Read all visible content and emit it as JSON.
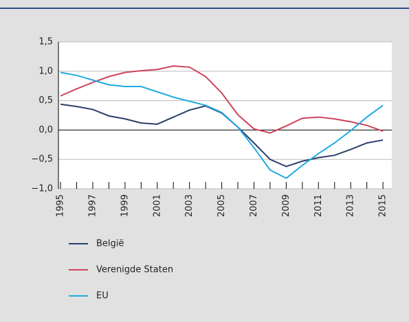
{
  "chart_data": {
    "type": "line",
    "x": [
      1995,
      1996,
      1997,
      1998,
      1999,
      2000,
      2001,
      2002,
      2003,
      2004,
      2005,
      2006,
      2007,
      2008,
      2009,
      2010,
      2011,
      2012,
      2013,
      2014,
      2015
    ],
    "series": [
      {
        "name": "België",
        "color": "#2b3f6b",
        "values": [
          0.44,
          0.4,
          0.35,
          0.24,
          0.19,
          0.12,
          0.1,
          0.22,
          0.34,
          0.41,
          0.29,
          0.05,
          -0.22,
          -0.5,
          -0.62,
          -0.53,
          -0.47,
          -0.43,
          -0.33,
          -0.22,
          -0.17
        ]
      },
      {
        "name": "Verenigde Staten",
        "color": "#d0435a",
        "values": [
          0.58,
          0.7,
          0.81,
          0.91,
          0.98,
          1.01,
          1.03,
          1.09,
          1.07,
          0.91,
          0.63,
          0.26,
          0.02,
          -0.05,
          0.07,
          0.2,
          0.22,
          0.19,
          0.14,
          0.08,
          -0.02
        ]
      },
      {
        "name": "EU",
        "color": "#1fa9e1",
        "values": [
          0.98,
          0.93,
          0.85,
          0.77,
          0.74,
          0.74,
          0.65,
          0.56,
          0.49,
          0.42,
          0.3,
          0.05,
          -0.3,
          -0.68,
          -0.82,
          -0.6,
          -0.4,
          -0.22,
          -0.01,
          0.22,
          0.42
        ]
      }
    ],
    "xlim": [
      1994.87,
      2015.55
    ],
    "xticks": [
      1995,
      1997,
      1999,
      2001,
      2003,
      2005,
      2007,
      2009,
      2011,
      2013,
      2015
    ],
    "xminor_ticks": [
      1996,
      1998,
      2000,
      2002,
      2004,
      2006,
      2008,
      2010,
      2012,
      2014
    ],
    "ylim": [
      -1.0,
      1.5
    ],
    "yticks": [
      {
        "value": -1.0,
        "label": "−1,0"
      },
      {
        "value": -0.5,
        "label": "−0,5"
      },
      {
        "value": 0,
        "label": "0,0"
      },
      {
        "value": 0.5,
        "label": "0,5"
      },
      {
        "value": 1.0,
        "label": "1,0"
      },
      {
        "value": 1.5,
        "label": "1,5"
      }
    ],
    "grid": true
  }
}
